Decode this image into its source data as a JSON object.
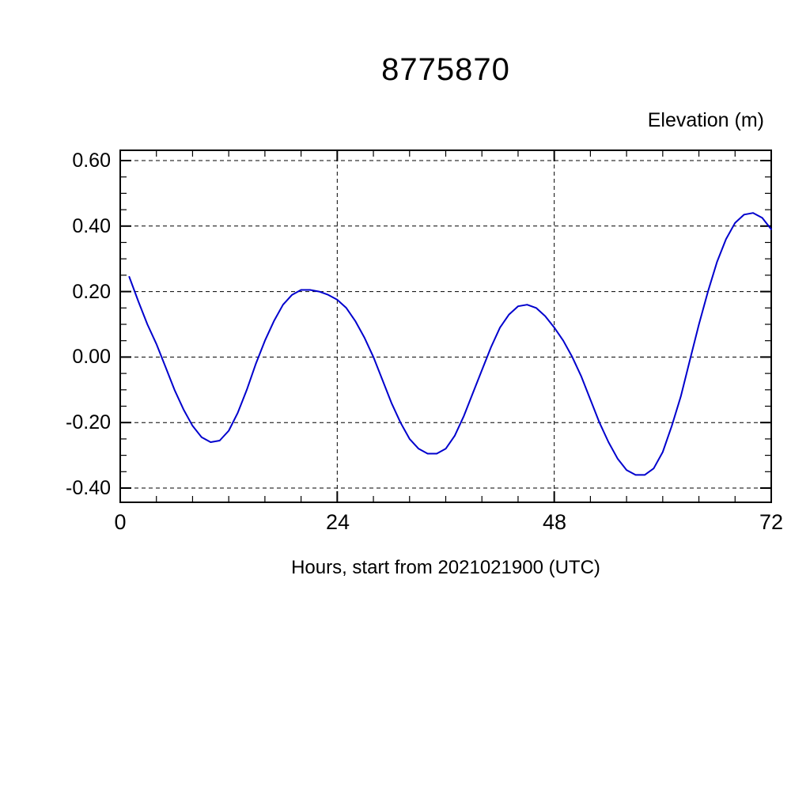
{
  "chart": {
    "background": "#ffffff",
    "axis_color": "#000000",
    "grid_color": "#000000",
    "line_color": "#0000cd"
  },
  "chart_data": {
    "type": "line",
    "title": "8775870",
    "xlabel": "Hours, start from 2021021900 (UTC)",
    "ylabel": "Elevation (m)",
    "xlim": [
      0,
      72
    ],
    "ylim": [
      -0.445,
      0.632
    ],
    "grid": true,
    "legend": "none",
    "x_major_ticks": [
      0,
      24,
      48,
      72
    ],
    "x_tick_labels": [
      "0",
      "24",
      "48",
      "72"
    ],
    "x_minor_step": 4,
    "y_major_ticks": [
      0.6,
      0.4,
      0.2,
      0.0,
      -0.2,
      -0.4
    ],
    "y_tick_labels": [
      "0.60",
      "0.40",
      "0.20",
      "0.00",
      "-0.20",
      "-0.40"
    ],
    "y_minor_step": 0.05,
    "vertical_gridlines": [
      24,
      48
    ],
    "series": [
      {
        "name": "elevation",
        "color": "#0000cd",
        "x": [
          1,
          2,
          3,
          4,
          5,
          6,
          7,
          8,
          9,
          10,
          11,
          12,
          13,
          14,
          15,
          16,
          17,
          18,
          19,
          20,
          21,
          22,
          23,
          24,
          25,
          26,
          27,
          28,
          29,
          30,
          31,
          32,
          33,
          34,
          35,
          36,
          37,
          38,
          39,
          40,
          41,
          42,
          43,
          44,
          45,
          46,
          47,
          48,
          49,
          50,
          51,
          52,
          53,
          54,
          55,
          56,
          57,
          58,
          59,
          60,
          61,
          62,
          63,
          64,
          65,
          66,
          67,
          68,
          69,
          70,
          71,
          72
        ],
        "y": [
          0.245,
          0.17,
          0.1,
          0.04,
          -0.03,
          -0.1,
          -0.16,
          -0.21,
          -0.245,
          -0.26,
          -0.255,
          -0.225,
          -0.17,
          -0.1,
          -0.02,
          0.05,
          0.11,
          0.16,
          0.19,
          0.205,
          0.205,
          0.2,
          0.19,
          0.175,
          0.15,
          0.11,
          0.06,
          0.0,
          -0.07,
          -0.14,
          -0.2,
          -0.25,
          -0.28,
          -0.295,
          -0.295,
          -0.28,
          -0.24,
          -0.18,
          -0.11,
          -0.04,
          0.03,
          0.09,
          0.13,
          0.155,
          0.16,
          0.15,
          0.125,
          0.09,
          0.05,
          0.0,
          -0.06,
          -0.13,
          -0.2,
          -0.26,
          -0.31,
          -0.345,
          -0.36,
          -0.36,
          -0.34,
          -0.29,
          -0.21,
          -0.12,
          -0.01,
          0.1,
          0.2,
          0.29,
          0.36,
          0.41,
          0.435,
          0.44,
          0.425,
          0.39
        ]
      }
    ]
  }
}
